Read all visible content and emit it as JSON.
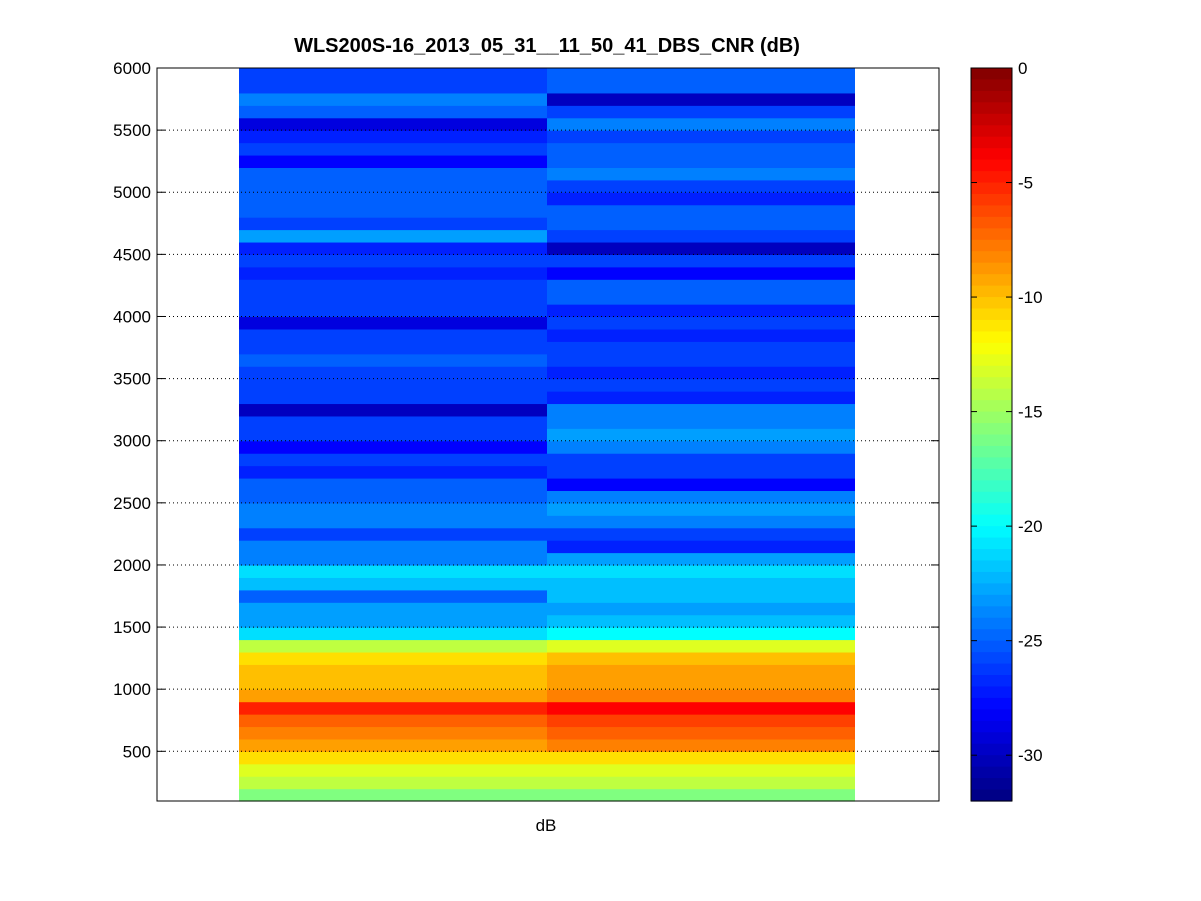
{
  "chart_data": {
    "type": "heatmap",
    "title": "WLS200S-16_2013_05_31__11_50_41_DBS_CNR (dB)",
    "xlabel": "dB",
    "ylabel": "",
    "ylim": [
      100,
      6000
    ],
    "yticks": [
      500,
      1000,
      1500,
      2000,
      2500,
      3000,
      3500,
      4000,
      4500,
      5000,
      5500,
      6000
    ],
    "grid": "y-dotted",
    "colormap": "jet",
    "clim": [
      -32,
      0
    ],
    "colorbar_ticks": [
      0,
      -5,
      -10,
      -15,
      -20,
      -25,
      -30
    ],
    "colorbar_location": "right",
    "columns": 2,
    "y_bin_size_m": 100,
    "y_values_m": [
      150,
      250,
      350,
      450,
      550,
      650,
      750,
      850,
      950,
      1050,
      1150,
      1250,
      1350,
      1450,
      1550,
      1650,
      1750,
      1850,
      1950,
      2050,
      2150,
      2250,
      2350,
      2450,
      2550,
      2650,
      2750,
      2850,
      2950,
      3050,
      3150,
      3250,
      3350,
      3450,
      3550,
      3650,
      3750,
      3850,
      3950,
      4050,
      4150,
      4250,
      4350,
      4450,
      4550,
      4650,
      4750,
      4850,
      4950,
      5050,
      5150,
      5250,
      5350,
      5450,
      5550,
      5650,
      5750,
      5850,
      5950
    ],
    "col1_values_db": [
      -16,
      -14,
      -13,
      -11,
      -9,
      -8,
      -7,
      -5,
      -9,
      -10,
      -10,
      -11,
      -14,
      -21,
      -23,
      -23,
      -25,
      -22,
      -21,
      -24,
      -24,
      -26,
      -24,
      -24,
      -25,
      -25,
      -27,
      -26,
      -28,
      -26,
      -26,
      -30,
      -26,
      -26,
      -26,
      -25,
      -26,
      -26,
      -29,
      -26,
      -26,
      -26,
      -27,
      -26,
      -27,
      -23,
      -26,
      -25,
      -25,
      -25,
      -25,
      -28,
      -26,
      -27,
      -29,
      -25,
      -24,
      -26,
      -26
    ],
    "col2_values_db": [
      -16,
      -14,
      -13,
      -11,
      -8,
      -7,
      -6,
      -4,
      -8,
      -9,
      -9,
      -10,
      -13,
      -20,
      -22,
      -23,
      -22,
      -22,
      -21,
      -23,
      -27,
      -26,
      -24,
      -23,
      -24,
      -28,
      -26,
      -26,
      -24,
      -23,
      -24,
      -24,
      -27,
      -26,
      -27,
      -26,
      -26,
      -27,
      -26,
      -27,
      -25,
      -25,
      -28,
      -26,
      -30,
      -26,
      -25,
      -25,
      -27,
      -26,
      -24,
      -25,
      -25,
      -26,
      -24,
      -26,
      -30,
      -25,
      -25
    ]
  }
}
